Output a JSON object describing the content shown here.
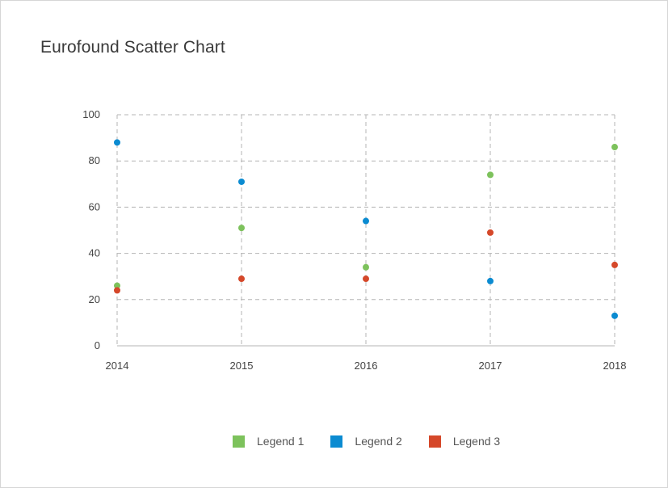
{
  "chart_data": {
    "type": "scatter",
    "title": "Eurofound Scatter Chart",
    "xlabel": "",
    "ylabel": "",
    "x": [
      "2014",
      "2015",
      "2016",
      "2017",
      "2018"
    ],
    "ylim": [
      0,
      100
    ],
    "yticks": [
      0,
      20,
      40,
      60,
      80,
      100
    ],
    "grid": true,
    "legend_position": "bottom",
    "series": [
      {
        "name": "Legend 1",
        "color": "#7dc25c",
        "values": [
          26,
          51,
          34,
          74,
          86
        ]
      },
      {
        "name": "Legend 2",
        "color": "#0b8bd1",
        "values": [
          88,
          71,
          54,
          28,
          13
        ]
      },
      {
        "name": "Legend 3",
        "color": "#d5482a",
        "values": [
          24,
          29,
          29,
          49,
          35
        ]
      }
    ]
  }
}
